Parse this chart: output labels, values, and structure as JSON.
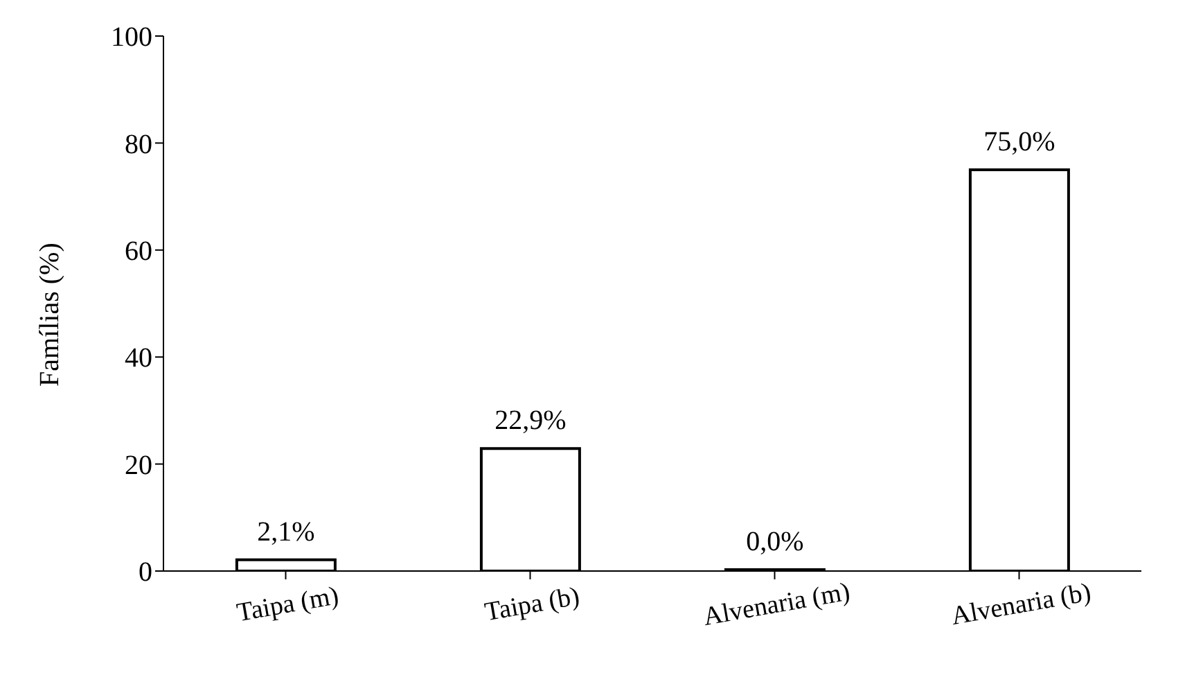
{
  "chart_data": {
    "type": "bar",
    "ylabel": "Famílias (%)",
    "categories": [
      "Taipa (m)",
      "Taipa (b)",
      "Alvenaria (m)",
      "Alvenaria (b)"
    ],
    "values": [
      2.1,
      22.9,
      0,
      75
    ],
    "value_labels": [
      "2,1%",
      "22,9%",
      "0,0%",
      "75,0%"
    ],
    "color": "#ffffff",
    "ylim": [
      0,
      100
    ],
    "yticks": [
      0,
      20,
      40,
      60,
      80,
      100
    ],
    "grid": false,
    "legend": false
  }
}
